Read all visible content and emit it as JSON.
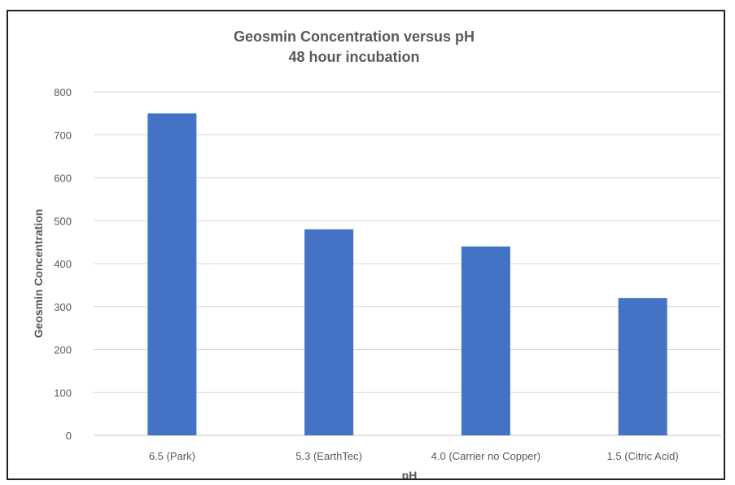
{
  "chart_data": {
    "type": "bar",
    "title": "Geosmin Concentration versus pH",
    "subtitle": "48 hour incubation",
    "xlabel": "pH",
    "ylabel": "Geosmin Concentration",
    "categories": [
      "6.5 (Park)",
      "5.3 (EarthTec)",
      "4.0 (Carrier no Copper)",
      "1.5 (Citric Acid)"
    ],
    "values": [
      750,
      480,
      440,
      320
    ],
    "ylim": [
      0,
      800
    ],
    "yticks": [
      "0",
      "100",
      "200",
      "300",
      "400",
      "500",
      "600",
      "700",
      "800"
    ],
    "grid": true,
    "legend": "none",
    "bar_color": "#4472c4",
    "grid_color": "#d9d9d9"
  }
}
